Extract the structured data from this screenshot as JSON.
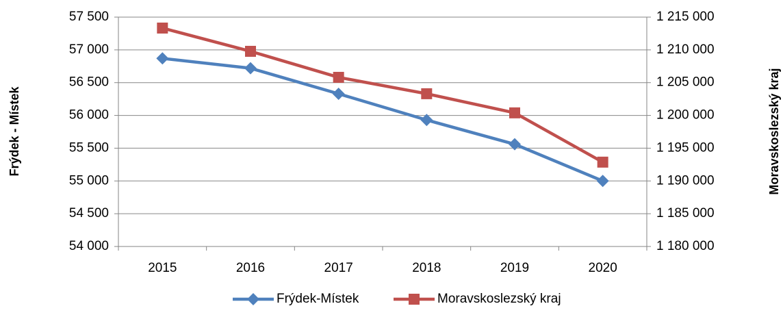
{
  "chart_data": {
    "type": "line",
    "categories": [
      "2015",
      "2016",
      "2017",
      "2018",
      "2019",
      "2020"
    ],
    "ylabel": "Frýdek - Místek",
    "y2label": "Moravskoslezský kraj",
    "series": [
      {
        "name": "Frýdek-Místek",
        "color": "#4f81bd",
        "marker": "diamond",
        "values": [
          56870,
          56720,
          56330,
          55930,
          55560,
          55000
        ]
      },
      {
        "name": "Moravskoslezský kraj",
        "color": "#c0504d",
        "marker": "square",
        "axis": "y2",
        "values": [
          1213330,
          1209780,
          1205810,
          1203310,
          1200390,
          1192870
        ]
      }
    ],
    "ylim": [
      54000,
      57500
    ],
    "yticks": [
      {
        "value": 54000,
        "label": "54 000"
      },
      {
        "value": 54500,
        "label": "54 500"
      },
      {
        "value": 55000,
        "label": "55 000"
      },
      {
        "value": 55500,
        "label": "55 500"
      },
      {
        "value": 56000,
        "label": "56 000"
      },
      {
        "value": 56500,
        "label": "56 500"
      },
      {
        "value": 57000,
        "label": "57 000"
      },
      {
        "value": 57500,
        "label": "57 500"
      }
    ],
    "y2lim": [
      1180000,
      1215000
    ],
    "y2ticks": [
      {
        "value": 1180000,
        "label": "1 180 000"
      },
      {
        "value": 1185000,
        "label": "1 185 000"
      },
      {
        "value": 1190000,
        "label": "1 190 000"
      },
      {
        "value": 1195000,
        "label": "1 195 000"
      },
      {
        "value": 1200000,
        "label": "1 200 000"
      },
      {
        "value": 1205000,
        "label": "1 205 000"
      },
      {
        "value": 1210000,
        "label": "1 210 000"
      },
      {
        "value": 1215000,
        "label": "1 215 000"
      }
    ],
    "grid": true,
    "legend": "bottom"
  }
}
